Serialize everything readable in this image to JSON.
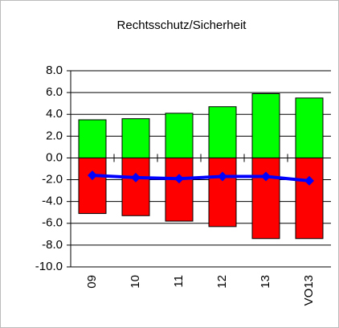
{
  "chart_data": {
    "type": "bar",
    "title": "Rechtsschutz/Sicherheit",
    "categories": [
      "09",
      "10",
      "11",
      "12",
      "13",
      "VO13"
    ],
    "series": [
      {
        "type": "bar",
        "color": "#00ff00",
        "values": [
          3.5,
          3.6,
          4.1,
          4.7,
          5.9,
          5.5
        ]
      },
      {
        "type": "bar",
        "color": "#ff0000",
        "values": [
          -5.1,
          -5.3,
          -5.8,
          -6.3,
          -7.4,
          -7.4
        ]
      },
      {
        "type": "line",
        "color": "#0000ff",
        "values": [
          -1.6,
          -1.8,
          -1.9,
          -1.7,
          -1.7,
          -2.1
        ]
      }
    ],
    "ylim": [
      -10,
      8
    ],
    "yticks": [
      {
        "value": -10,
        "label": "-10.0"
      },
      {
        "value": -8,
        "label": "-8.0"
      },
      {
        "value": -6,
        "label": "-6.0"
      },
      {
        "value": -4,
        "label": "-4.0"
      },
      {
        "value": -2,
        "label": "-2.0"
      },
      {
        "value": 0,
        "label": "0.0"
      },
      {
        "value": 2,
        "label": "2.0"
      },
      {
        "value": 4,
        "label": "4.0"
      },
      {
        "value": 6,
        "label": "6.0"
      },
      {
        "value": 8,
        "label": "8.0"
      }
    ],
    "grid": true
  }
}
